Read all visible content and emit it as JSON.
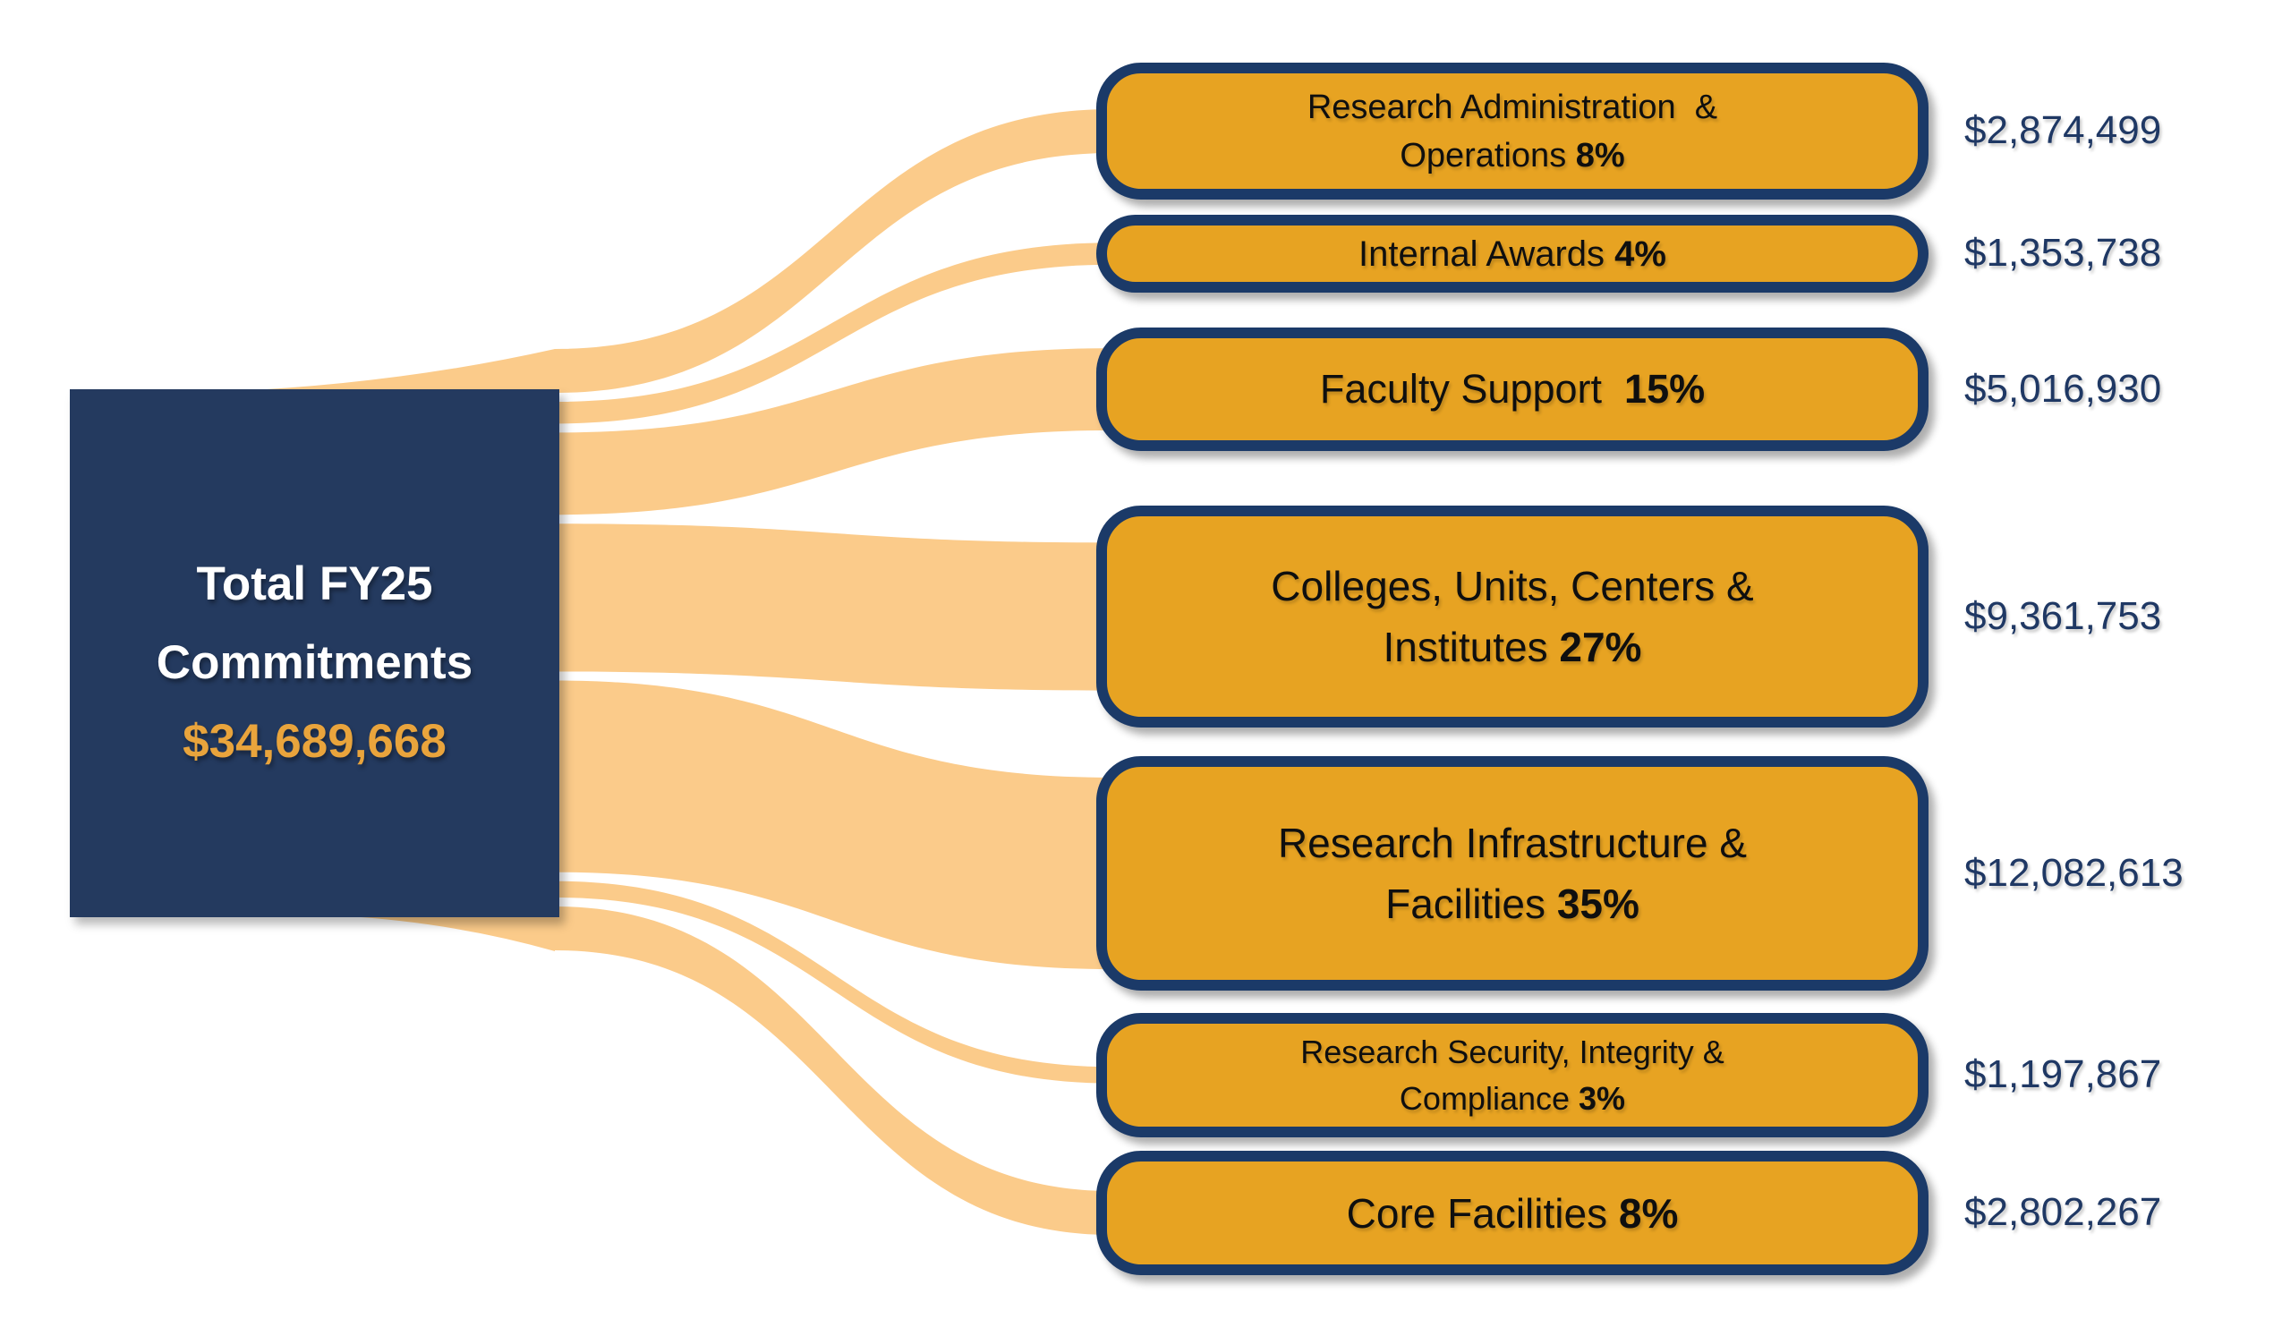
{
  "colors": {
    "navy_source_box": "#243A5F",
    "navy_border": "#1b3a68",
    "navy_value_text": "#1F3864",
    "gold_box": "#E7A322",
    "gold_amount_text": "#E9A43C",
    "ribbon_orange": "#FBCB8A",
    "label_black": "#0f0f0f",
    "white": "#ffffff"
  },
  "source_box": {
    "line1": "Total FY25",
    "line2": "Commitments",
    "amount": "$34,689,668"
  },
  "categories": [
    {
      "line1": "Research Administration  &",
      "line2": "Operations",
      "pct": "8%",
      "value": "$2,874,499"
    },
    {
      "line1": "Internal Awards",
      "pct": "4%",
      "value": "$1,353,738"
    },
    {
      "line1": "Faculty Support ",
      "pct": "15%",
      "value": "$5,016,930"
    },
    {
      "line1": "Colleges, Units, Centers &",
      "line2": "Institutes",
      "pct": "27%",
      "value": "$9,361,753"
    },
    {
      "line1": "Research Infrastructure &",
      "line2": "Facilities",
      "pct": "35%",
      "value": "$12,082,613"
    },
    {
      "line1": "Research Security, Integrity &",
      "line2": "Compliance",
      "pct": "3%",
      "value": "$1,197,867"
    },
    {
      "line1": "Core Facilities",
      "pct": "8%",
      "value": "$2,802,267"
    }
  ],
  "chart_data": {
    "type": "sankey",
    "title": "Total FY25 Commitments",
    "source": {
      "label": "Total FY25 Commitments",
      "amount": 34689668,
      "amount_label": "$34,689,668"
    },
    "flows": [
      {
        "target": "Research Administration & Operations",
        "percent": 8,
        "amount": 2874499,
        "amount_label": "$2,874,499"
      },
      {
        "target": "Internal Awards",
        "percent": 4,
        "amount": 1353738,
        "amount_label": "$1,353,738"
      },
      {
        "target": "Faculty Support",
        "percent": 15,
        "amount": 5016930,
        "amount_label": "$5,016,930"
      },
      {
        "target": "Colleges, Units, Centers & Institutes",
        "percent": 27,
        "amount": 9361753,
        "amount_label": "$9,361,753"
      },
      {
        "target": "Research Infrastructure & Facilities",
        "percent": 35,
        "amount": 12082613,
        "amount_label": "$12,082,613"
      },
      {
        "target": "Research Security, Integrity & Compliance",
        "percent": 3,
        "amount": 1197867,
        "amount_label": "$1,197,867"
      },
      {
        "target": "Core Facilities",
        "percent": 8,
        "amount": 2802267,
        "amount_label": "$2,802,267"
      }
    ],
    "legend": "none",
    "grid": false
  }
}
